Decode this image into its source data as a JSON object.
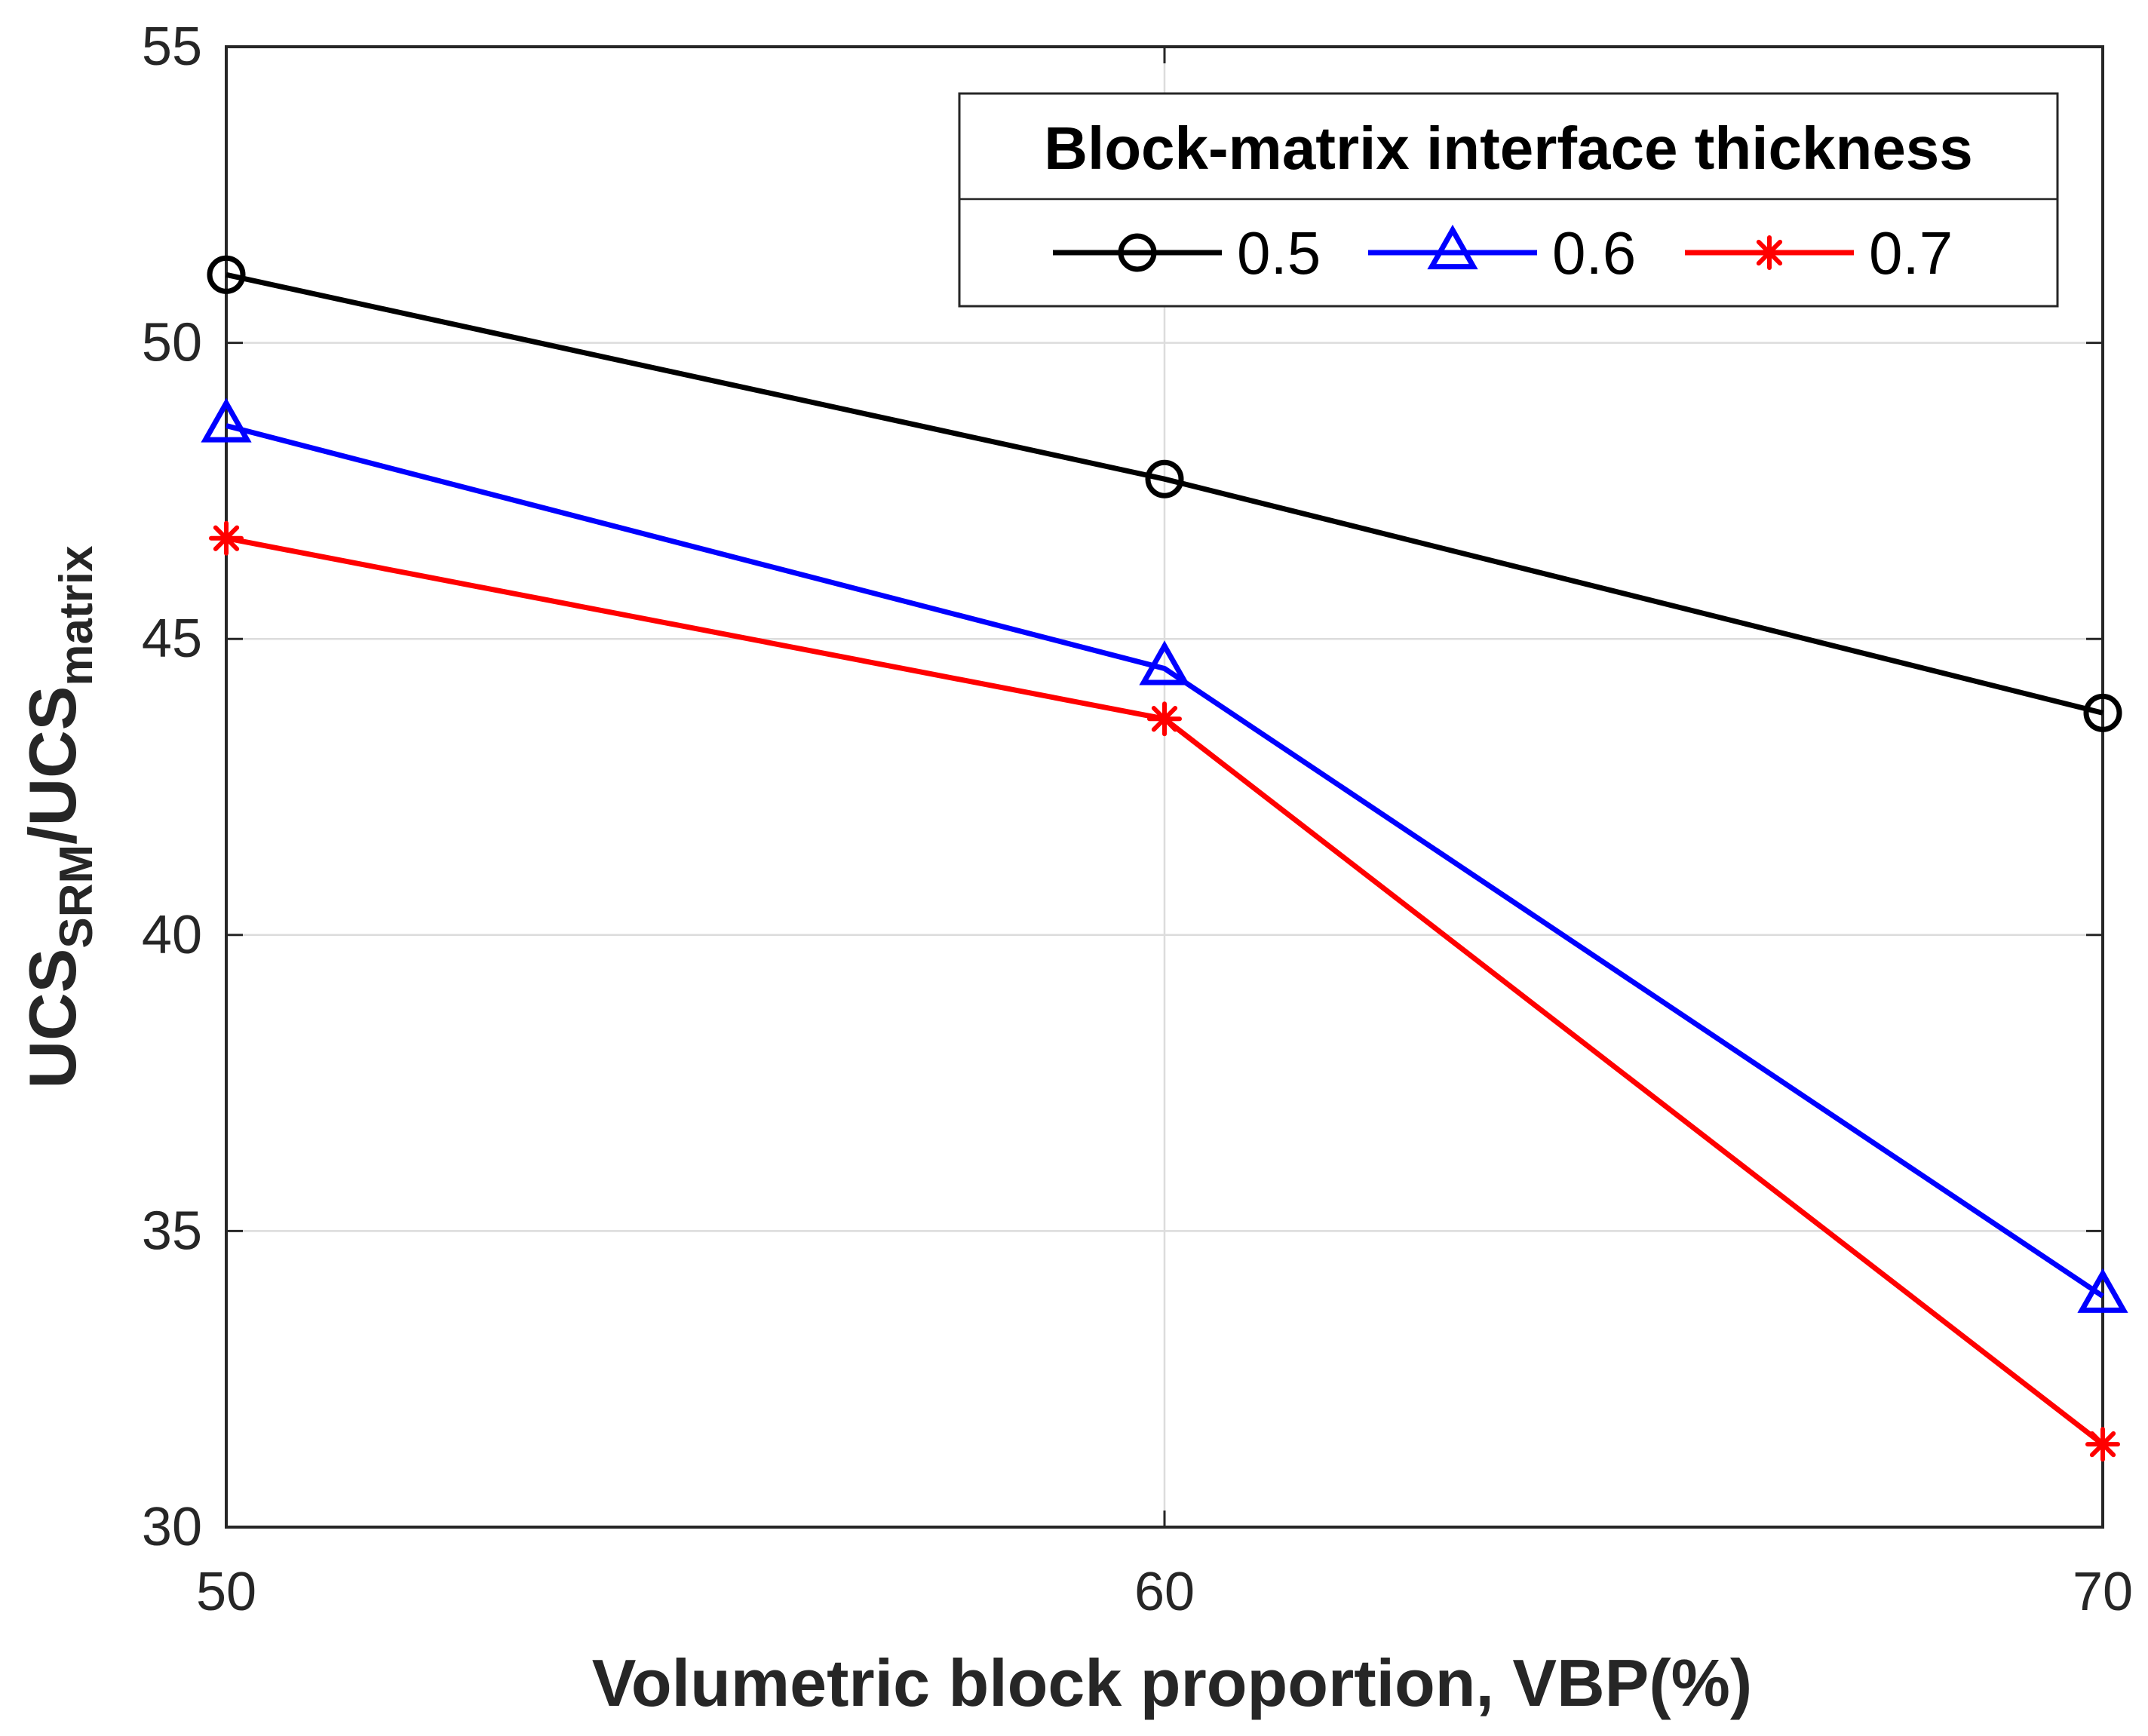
{
  "chart_data": {
    "type": "line",
    "x": [
      50,
      60,
      70
    ],
    "series": [
      {
        "name": "0.5",
        "values": [
          51.15,
          47.7,
          43.75
        ],
        "color": "#000000",
        "marker": "circle"
      },
      {
        "name": "0.6",
        "values": [
          48.6,
          44.5,
          33.9
        ],
        "color": "#0000ff",
        "marker": "triangle"
      },
      {
        "name": "0.7",
        "values": [
          46.7,
          43.65,
          31.4
        ],
        "color": "#ff0000",
        "marker": "asterisk"
      }
    ],
    "title": "",
    "xlabel": "Volumetric block proportion, VBP(%)",
    "ylabel": {
      "parts": [
        {
          "text": "UCS",
          "sub": false
        },
        {
          "text": "SRM",
          "sub": true
        },
        {
          "text": "/UCS",
          "sub": false
        },
        {
          "text": "matrix",
          "sub": true
        }
      ]
    },
    "xlim": [
      50,
      70
    ],
    "ylim": [
      30,
      55
    ],
    "xticks": [
      50,
      60,
      70
    ],
    "yticks": [
      30,
      35,
      40,
      45,
      50,
      55
    ],
    "grid": true,
    "legend": {
      "title": "Block-matrix interface thickness",
      "placement": "top-right",
      "orientation": "horizontal"
    }
  }
}
